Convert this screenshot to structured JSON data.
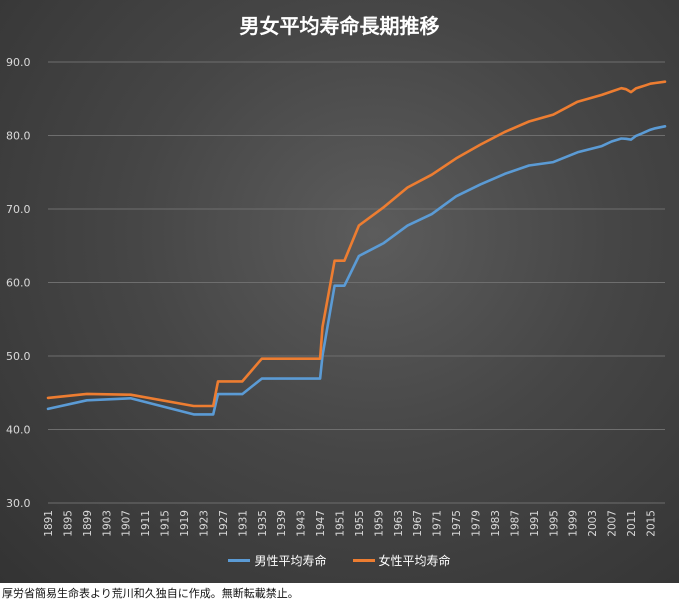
{
  "chart_data": {
    "type": "line",
    "title": "男女平均寿命長期推移",
    "xlabel": "",
    "ylabel": "",
    "ylim": [
      30,
      90
    ],
    "yticks": [
      "30.0",
      "40.0",
      "50.0",
      "60.0",
      "70.0",
      "80.0",
      "90.0"
    ],
    "xlim": [
      1891,
      2018
    ],
    "xticks": [
      "1891",
      "1895",
      "1899",
      "1903",
      "1907",
      "1911",
      "1915",
      "1919",
      "1923",
      "1927",
      "1931",
      "1935",
      "1939",
      "1943",
      "1947",
      "1951",
      "1955",
      "1959",
      "1963",
      "1967",
      "1971",
      "1975",
      "1979",
      "1983",
      "1987",
      "1991",
      "1995",
      "1999",
      "2003",
      "2007",
      "2011",
      "2015"
    ],
    "grid": "horizontal",
    "legend_position": "bottom",
    "series": [
      {
        "name": "男性平均寿命",
        "color": "#5b9bd5",
        "points": [
          [
            1891,
            42.8
          ],
          [
            1899,
            43.97
          ],
          [
            1908,
            44.25
          ],
          [
            1921,
            42.06
          ],
          [
            1925,
            42.06
          ],
          [
            1926,
            44.82
          ],
          [
            1931,
            44.82
          ],
          [
            1935,
            46.92
          ],
          [
            1947,
            46.92
          ],
          [
            1947.5,
            50.06
          ],
          [
            1950,
            59.57
          ],
          [
            1952,
            59.57
          ],
          [
            1955,
            63.6
          ],
          [
            1960,
            65.32
          ],
          [
            1965,
            67.74
          ],
          [
            1970,
            69.31
          ],
          [
            1975,
            71.73
          ],
          [
            1980,
            73.35
          ],
          [
            1985,
            74.78
          ],
          [
            1990,
            75.92
          ],
          [
            1995,
            76.38
          ],
          [
            2000,
            77.72
          ],
          [
            2005,
            78.56
          ],
          [
            2007,
            79.19
          ],
          [
            2009,
            79.59
          ],
          [
            2010,
            79.55
          ],
          [
            2011,
            79.44
          ],
          [
            2012,
            79.94
          ],
          [
            2013,
            80.21
          ],
          [
            2014,
            80.5
          ],
          [
            2015,
            80.79
          ],
          [
            2016,
            80.98
          ],
          [
            2018,
            81.25
          ]
        ]
      },
      {
        "name": "女性平均寿命",
        "color": "#ed7d31",
        "points": [
          [
            1891,
            44.3
          ],
          [
            1899,
            44.85
          ],
          [
            1908,
            44.73
          ],
          [
            1921,
            43.2
          ],
          [
            1925,
            43.2
          ],
          [
            1926,
            46.54
          ],
          [
            1931,
            46.54
          ],
          [
            1935,
            49.63
          ],
          [
            1947,
            49.63
          ],
          [
            1947.5,
            53.96
          ],
          [
            1950,
            62.97
          ],
          [
            1952,
            62.97
          ],
          [
            1955,
            67.75
          ],
          [
            1960,
            70.19
          ],
          [
            1965,
            72.92
          ],
          [
            1970,
            74.66
          ],
          [
            1975,
            76.89
          ],
          [
            1980,
            78.76
          ],
          [
            1985,
            80.48
          ],
          [
            1990,
            81.9
          ],
          [
            1995,
            82.85
          ],
          [
            2000,
            84.6
          ],
          [
            2005,
            85.52
          ],
          [
            2007,
            85.99
          ],
          [
            2009,
            86.44
          ],
          [
            2010,
            86.3
          ],
          [
            2011,
            85.9
          ],
          [
            2012,
            86.41
          ],
          [
            2013,
            86.61
          ],
          [
            2014,
            86.83
          ],
          [
            2015,
            87.05
          ],
          [
            2016,
            87.14
          ],
          [
            2018,
            87.32
          ]
        ]
      }
    ]
  },
  "source_note": "厚労省簡易生命表より荒川和久独自に作成。無断転載禁止。"
}
